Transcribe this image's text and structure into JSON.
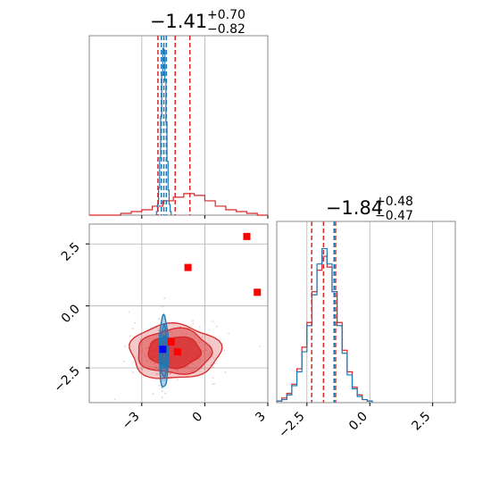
{
  "colors": {
    "red": "#d62728",
    "blue": "#1f77b4",
    "marker_blue": "#0000ff",
    "marker_red": "#ff0000",
    "grid": "#b0b0b0",
    "frame": "#888888"
  },
  "chart_data": [
    {
      "id": "marginal-param1",
      "type": "histogram",
      "title": {
        "main": "−1.41",
        "sup": "+0.70",
        "sub": "−0.82"
      },
      "xlim": [
        -5.5,
        3.0
      ],
      "grid_x": [
        -3,
        0
      ],
      "series": [
        {
          "name": "",
          "color": "#d62728",
          "bins": [
            -5.5,
            -5,
            -4.5,
            -4,
            -3.5,
            -3,
            -2.5,
            -2,
            -1.5,
            -1,
            -0.5,
            0,
            0.5,
            1,
            1.5,
            2,
            2.5,
            3
          ],
          "counts": [
            0.0,
            0.0,
            0.0,
            0.01,
            0.02,
            0.03,
            0.05,
            0.08,
            0.1,
            0.12,
            0.11,
            0.08,
            0.05,
            0.03,
            0.02,
            0.01,
            0.0
          ],
          "quantile_lines": [
            -2.23,
            -1.41,
            -0.71
          ]
        },
        {
          "name": "",
          "color": "#1f77b4",
          "bins": [
            -2.3,
            -2.25,
            -2.2,
            -2.15,
            -2.1,
            -2.05,
            -2.0,
            -1.95,
            -1.9,
            -1.85,
            -1.8,
            -1.75,
            -1.7,
            -1.65,
            -1.6
          ],
          "counts": [
            0.02,
            0.06,
            0.15,
            0.32,
            0.55,
            0.78,
            0.93,
            0.92,
            0.75,
            0.52,
            0.3,
            0.14,
            0.06,
            0.02
          ],
          "quantile_lines": [
            -2.07,
            -1.95,
            -1.83
          ]
        }
      ]
    },
    {
      "id": "marginal-param2",
      "type": "histogram",
      "title": {
        "main": "−1.84",
        "sup": "+0.48",
        "sub": "−0.47"
      },
      "xlim": [
        -3.7,
        3.4
      ],
      "xticks": [
        "−2.5",
        "0.0",
        "2.5"
      ],
      "xtick_values": [
        -2.5,
        0.0,
        2.5
      ],
      "series": [
        {
          "name": "",
          "color": "#d62728",
          "bins": [
            -3.7,
            -3.5,
            -3.3,
            -3.1,
            -2.9,
            -2.7,
            -2.5,
            -2.3,
            -2.1,
            -1.9,
            -1.7,
            -1.5,
            -1.3,
            -1.1,
            -0.9,
            -0.7,
            -0.5,
            -0.3,
            -0.1,
            0.1
          ],
          "counts": [
            0.01,
            0.03,
            0.06,
            0.12,
            0.22,
            0.36,
            0.52,
            0.72,
            0.86,
            0.95,
            0.88,
            0.72,
            0.52,
            0.34,
            0.2,
            0.1,
            0.05,
            0.02,
            0.01
          ],
          "quantile_lines": [
            -2.31,
            -1.84,
            -1.36
          ]
        },
        {
          "name": "",
          "color": "#1f77b4",
          "bins": [
            -3.7,
            -3.5,
            -3.3,
            -3.1,
            -2.9,
            -2.7,
            -2.5,
            -2.3,
            -2.1,
            -1.9,
            -1.7,
            -1.5,
            -1.3,
            -1.1,
            -0.9,
            -0.7,
            -0.5,
            -0.3,
            -0.1,
            0.1
          ],
          "counts": [
            0.01,
            0.02,
            0.05,
            0.11,
            0.2,
            0.33,
            0.5,
            0.7,
            0.9,
            1.0,
            0.9,
            0.72,
            0.5,
            0.32,
            0.18,
            0.09,
            0.04,
            0.02,
            0.01
          ],
          "quantile_lines": [
            -1.42
          ]
        }
      ]
    },
    {
      "id": "joint-param1-param2",
      "type": "contour",
      "xlim": [
        -5.5,
        3.0
      ],
      "ylim": [
        -3.9,
        3.3
      ],
      "xticks": [
        "−3",
        "0",
        "3"
      ],
      "xtick_values": [
        -3,
        0,
        3
      ],
      "yticks": [
        "−2.5",
        "0.0",
        "2.5"
      ],
      "ytick_values": [
        -2.5,
        0.0,
        2.5
      ],
      "red_contours": {
        "center": [
          -1.45,
          -1.85
        ],
        "levels": [
          {
            "rx": 2.15,
            "ry": 1.1,
            "opacity": 0.25
          },
          {
            "rx": 1.75,
            "ry": 0.9,
            "opacity": 0.45
          },
          {
            "rx": 1.25,
            "ry": 0.62,
            "opacity": 0.75
          }
        ]
      },
      "blue_contours": {
        "center": [
          -1.95,
          -1.85
        ],
        "levels": [
          {
            "rx": 0.22,
            "ry": 1.45
          },
          {
            "rx": 0.15,
            "ry": 1.05
          },
          {
            "rx": 0.09,
            "ry": 0.65
          }
        ]
      },
      "markers": [
        {
          "x": 2.0,
          "y": 2.8,
          "color": "#ff0000"
        },
        {
          "x": -0.8,
          "y": 1.55,
          "color": "#ff0000"
        },
        {
          "x": 2.5,
          "y": 0.55,
          "color": "#ff0000"
        },
        {
          "x": -1.6,
          "y": -1.45,
          "color": "#ff0000"
        },
        {
          "x": -1.3,
          "y": -1.85,
          "color": "#ff0000"
        },
        {
          "x": -2.0,
          "y": -1.75,
          "color": "#0000ff"
        }
      ]
    }
  ]
}
